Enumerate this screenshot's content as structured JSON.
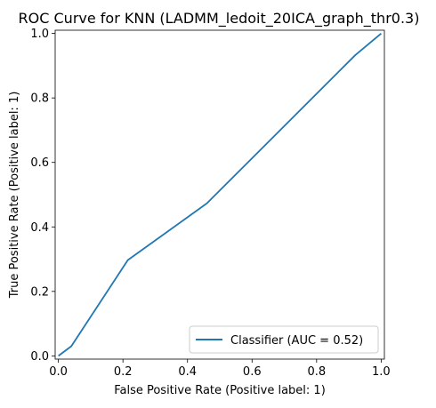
{
  "chart_data": {
    "type": "line",
    "title": "ROC Curve for KNN (LADMM_ledoit_20ICA_graph_thr0.3)",
    "xlabel": "False Positive Rate (Positive label: 1)",
    "ylabel": "True Positive Rate (Positive label: 1)",
    "xlim": [
      -0.01,
      1.01
    ],
    "ylim": [
      -0.01,
      1.01
    ],
    "xticks": [
      0.0,
      0.2,
      0.4,
      0.6,
      0.8,
      1.0
    ],
    "xtick_labels": [
      "0.0",
      "0.2",
      "0.4",
      "0.6",
      "0.8",
      "1.0"
    ],
    "yticks": [
      0.0,
      0.2,
      0.4,
      0.6,
      0.8,
      1.0
    ],
    "ytick_labels": [
      "0.0",
      "0.2",
      "0.4",
      "0.6",
      "0.8",
      "1.0"
    ],
    "grid": false,
    "legend_position": "bottom-right",
    "series": [
      {
        "name": "Classifier (AUC = 0.52)",
        "color": "#1f77b4",
        "x": [
          0.0,
          0.04,
          0.215,
          0.46,
          0.92,
          1.0
        ],
        "y": [
          0.0,
          0.03,
          0.297,
          0.473,
          0.933,
          1.0
        ]
      }
    ]
  }
}
